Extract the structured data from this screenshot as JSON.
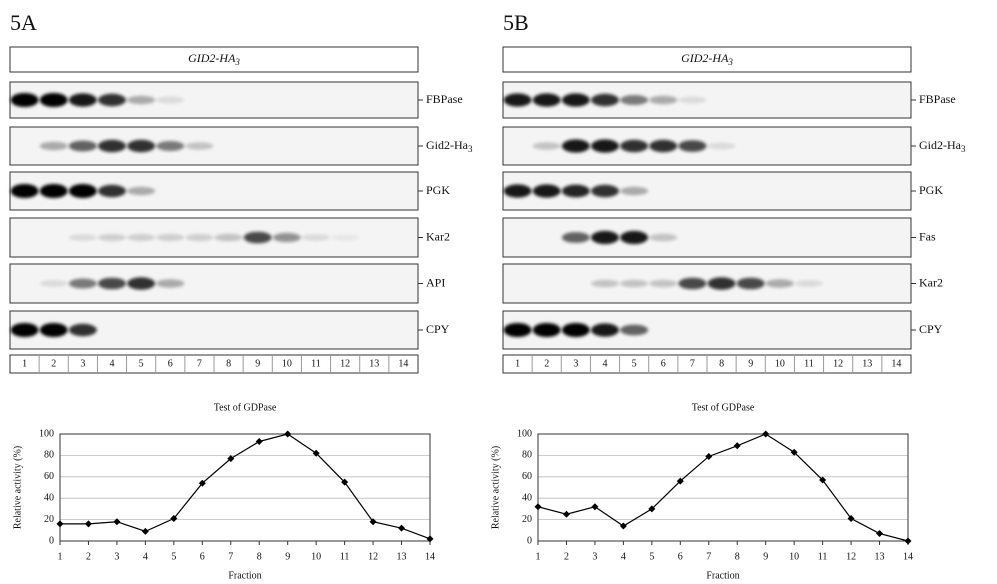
{
  "panels": [
    {
      "label": "5A",
      "header": {
        "text": "GID2-HA",
        "sub": "3"
      },
      "rows": [
        {
          "text": "FBPase"
        },
        {
          "text": "Gid2-Ha",
          "sub": "3"
        },
        {
          "text": "PGK"
        },
        {
          "text": "Kar2"
        },
        {
          "text": "API"
        },
        {
          "text": "CPY"
        }
      ],
      "lanes": [
        "1",
        "2",
        "3",
        "4",
        "5",
        "6",
        "7",
        "8",
        "9",
        "10",
        "11",
        "12",
        "13",
        "14"
      ]
    },
    {
      "label": "5B",
      "header": {
        "text": "GID2-HA",
        "sub": "3"
      },
      "rows": [
        {
          "text": "FBPase"
        },
        {
          "text": "Gid2-Ha",
          "sub": "3"
        },
        {
          "text": "PGK"
        },
        {
          "text": "Fas"
        },
        {
          "text": "Kar2"
        },
        {
          "text": "CPY"
        }
      ],
      "lanes": [
        "1",
        "2",
        "3",
        "4",
        "5",
        "6",
        "7",
        "8",
        "9",
        "10",
        "11",
        "12",
        "13",
        "14"
      ]
    }
  ],
  "chart_data": [
    {
      "type": "line",
      "title": "Test of GDPase",
      "x_label": "Fraction",
      "y_label": "Relative activity (%)",
      "x": [
        1,
        2,
        3,
        4,
        5,
        6,
        7,
        8,
        9,
        10,
        11,
        12,
        13,
        14
      ],
      "xlim": [
        1,
        14
      ],
      "xticks": [
        1,
        2,
        3,
        4,
        5,
        6,
        7,
        8,
        9,
        10,
        11,
        12,
        13,
        14
      ],
      "ylim": [
        0,
        100
      ],
      "yticks": [
        0,
        20,
        40,
        60,
        80,
        100
      ],
      "grid": true,
      "series": [
        {
          "color": "#000000",
          "values": [
            16,
            16,
            18,
            9,
            21,
            54,
            77,
            93,
            100,
            82,
            55,
            18,
            12,
            2
          ]
        }
      ]
    },
    {
      "type": "line",
      "title": "Test of GDPase",
      "x_label": "Fraction",
      "y_label": "Relative activity (%)",
      "x": [
        1,
        2,
        3,
        4,
        5,
        6,
        7,
        8,
        9,
        10,
        11,
        12,
        13,
        14
      ],
      "xlim": [
        1,
        14
      ],
      "xticks": [
        1,
        2,
        3,
        4,
        5,
        6,
        7,
        8,
        9,
        10,
        11,
        12,
        13,
        14
      ],
      "ylim": [
        0,
        100
      ],
      "yticks": [
        0,
        20,
        40,
        60,
        80,
        100
      ],
      "grid": true,
      "series": [
        {
          "color": "#000000",
          "values": [
            32,
            25,
            32,
            14,
            30,
            56,
            79,
            89,
            100,
            83,
            57,
            21,
            7,
            0
          ]
        }
      ]
    }
  ]
}
